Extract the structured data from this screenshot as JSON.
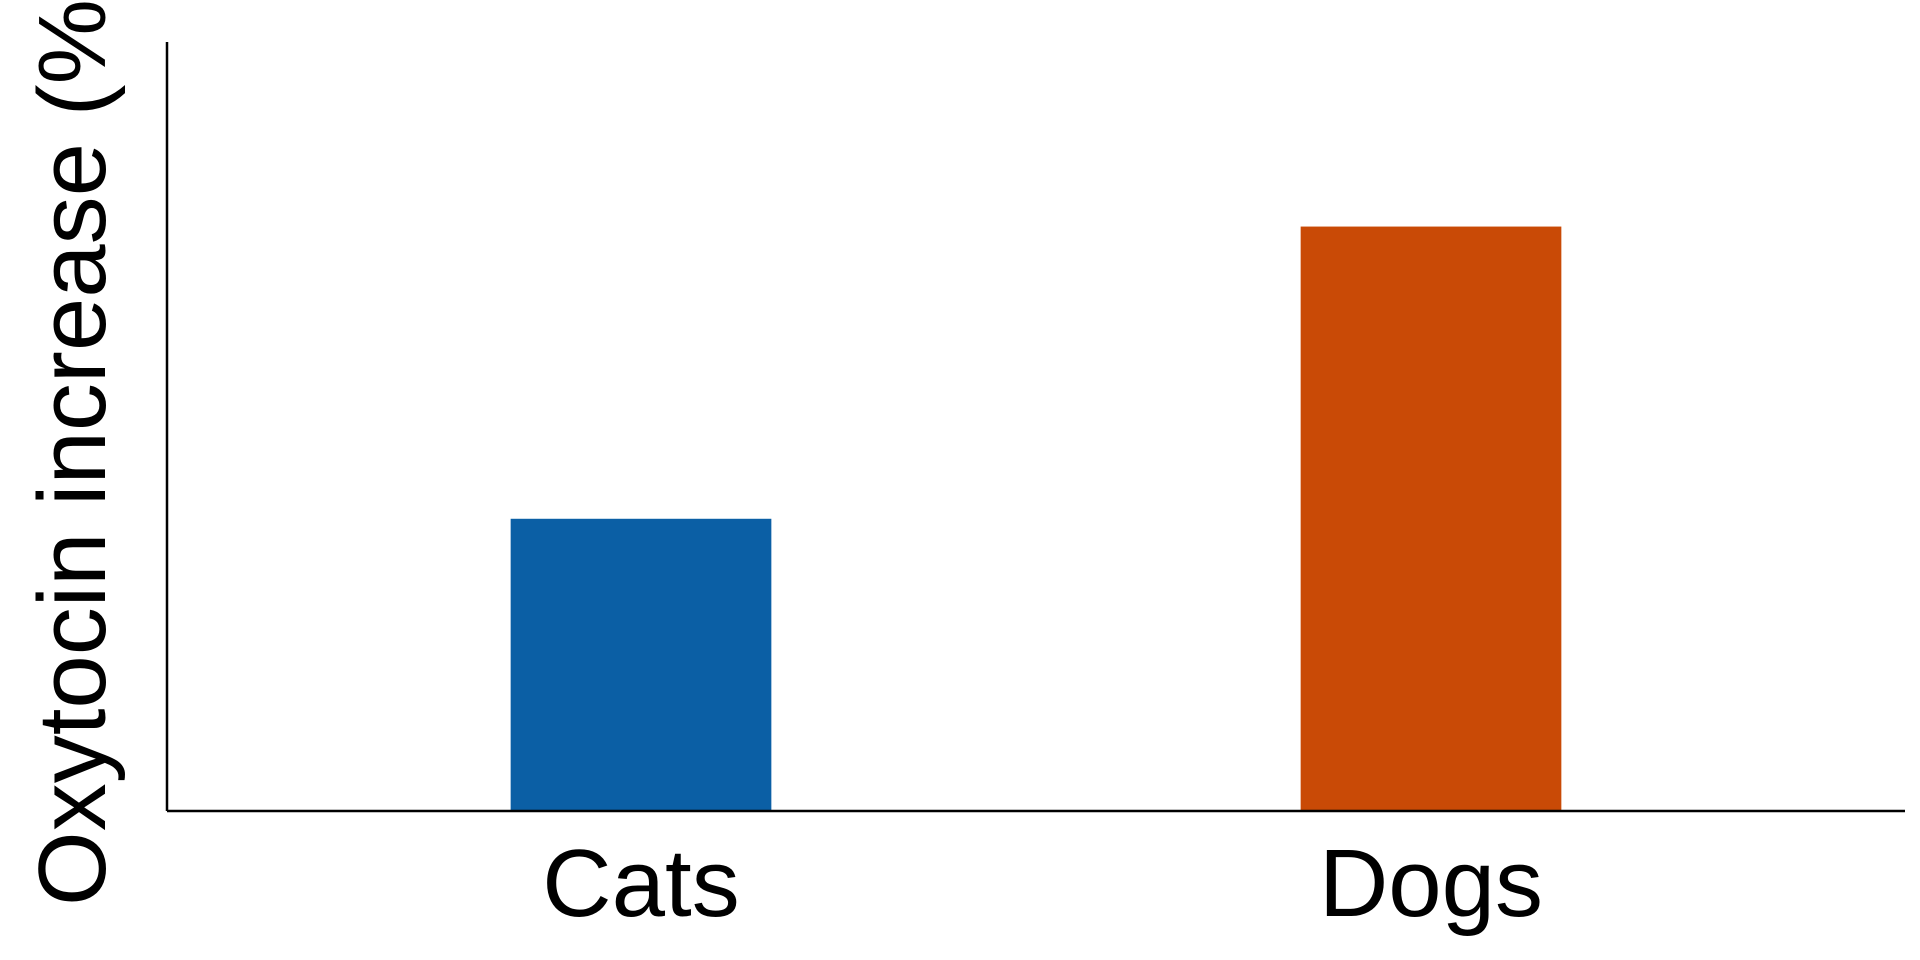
{
  "chart_data": {
    "type": "bar",
    "title": "",
    "xlabel": "",
    "ylabel": "Oxytocin increase (%)",
    "categories": [
      "Cats",
      "Dogs"
    ],
    "values": [
      38,
      76
    ],
    "ylim": [
      0,
      100
    ],
    "colors": [
      "#0b5fa5",
      "#c94a06"
    ],
    "grid": false,
    "legend": "none",
    "y_ticks_shown": false
  }
}
